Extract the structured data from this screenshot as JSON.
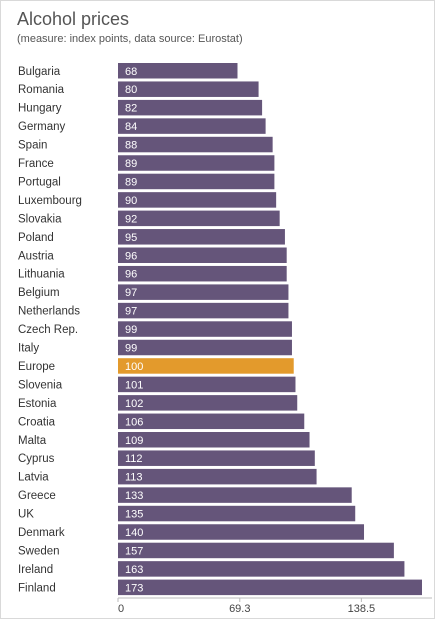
{
  "chart_data": {
    "type": "bar",
    "orientation": "horizontal",
    "title": "Alcohol prices",
    "subtitle": "(measure: index points, data source: Eurostat)",
    "categories": [
      "Bulgaria",
      "Romania",
      "Hungary",
      "Germany",
      "Spain",
      "France",
      "Portugal",
      "Luxembourg",
      "Slovakia",
      "Poland",
      "Austria",
      "Lithuania",
      "Belgium",
      "Netherlands",
      "Czech Rep.",
      "Italy",
      "Europe",
      "Slovenia",
      "Estonia",
      "Croatia",
      "Malta",
      "Cyprus",
      "Latvia",
      "Greece",
      "UK",
      "Denmark",
      "Sweden",
      "Ireland",
      "Finland"
    ],
    "values": [
      68,
      80,
      82,
      84,
      88,
      89,
      89,
      90,
      92,
      95,
      96,
      96,
      97,
      97,
      99,
      99,
      100,
      101,
      102,
      106,
      109,
      112,
      113,
      133,
      135,
      140,
      157,
      163,
      173
    ],
    "highlight": "Europe",
    "xticks": [
      "0",
      "69.3",
      "138.5"
    ],
    "xlim": [
      0,
      173
    ],
    "grid": false,
    "colors": {
      "bar": "#65557a",
      "highlight": "#e39a2c"
    }
  }
}
